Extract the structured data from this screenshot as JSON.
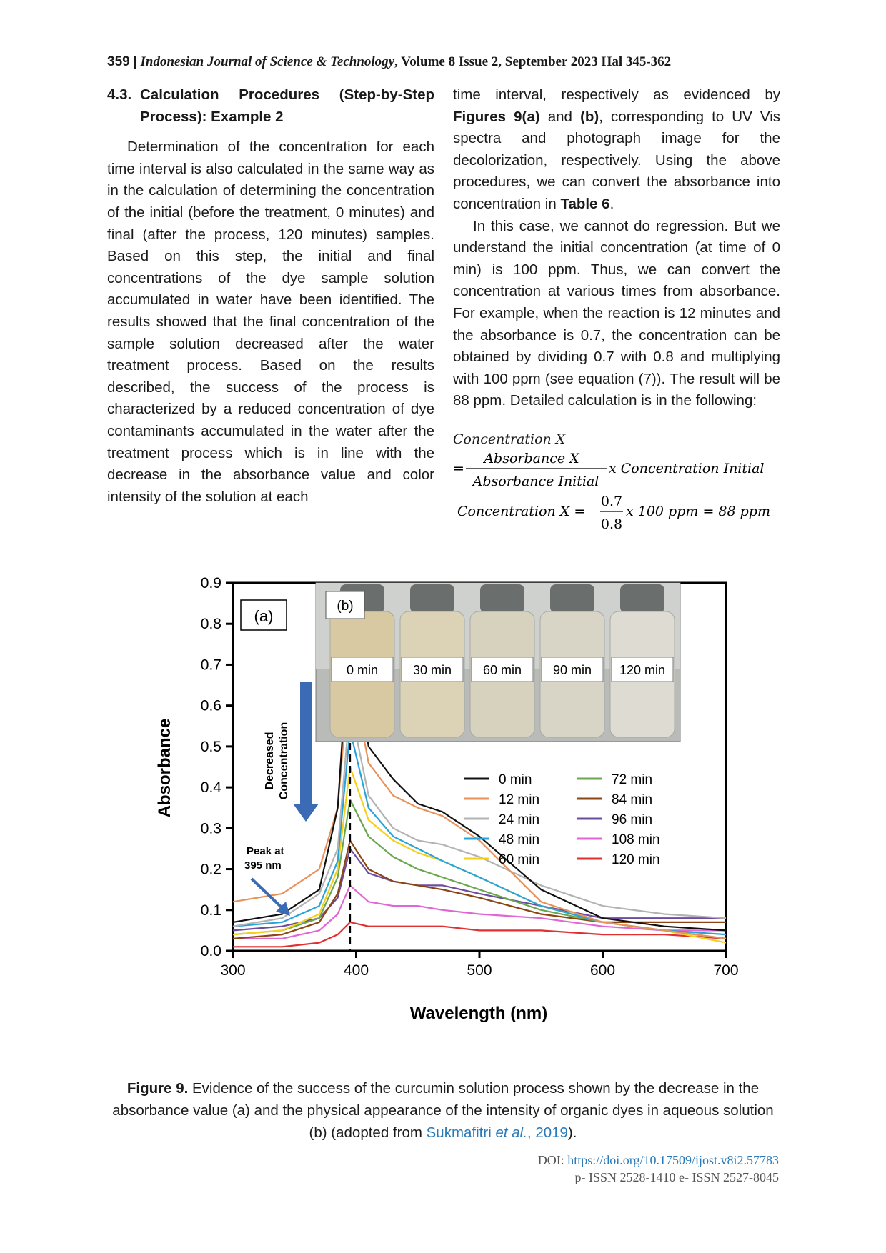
{
  "header": {
    "page_number": "359",
    "separator": "|",
    "journal": "Indonesian Journal of Science & Technology",
    "issue": ", Volume 8 Issue 2, September 2023 Hal 345-362"
  },
  "section": {
    "number": "4.3.",
    "title": "Calculation Procedures (Step-by-Step Process): Example 2"
  },
  "left_paragraph": "Determination of the concentration for each time interval is also calculated in the same way as in the calculation of determining the concentration of the initial (before the treatment, 0 minutes) and final (after the process, 120 minutes) samples. Based on this step, the initial and final concentrations of the dye sample solution accumulated in water have been identified. The results showed that the final concentration of the sample solution decreased after the water treatment process. Based on the results described, the success of the process is characterized by a reduced concentration of dye contaminants accumulated in the water after the treatment process which is in line with the decrease in the absorbance value and color intensity of the solution at each",
  "right_p1": {
    "a": "time interval, respectively as evidenced by ",
    "fig_a": "Figures 9(a)",
    "and": " and ",
    "fig_b": "(b)",
    "b": ", corresponding to UV Vis spectra and photograph image for the decolorization, respectively. Using the above procedures, we can convert the absorbance into concentration in ",
    "table": "Table 6",
    "end": "."
  },
  "right_p2": "In this case, we cannot do regression. But we understand the initial concentration (at time of 0 min) is 100 ppm. Thus, we can convert the concentration at various times from absorbance. For example, when the reaction is 12 minutes and the absorbance is 0.7, the concentration can be obtained by dividing 0.7 with 0.8 and multiplying with 100 ppm (see equation (7)). The result will be 88 ppm. Detailed calculation is in the following:",
  "equation": {
    "line1": "Concentration X",
    "equals": "=",
    "numerator": "Absorbance X",
    "denominator": "Absorbance Initial",
    "rhs": "x Concentration Initial",
    "line3_lhs": "Concentration X =",
    "num2": "0.7",
    "den2": "0.8",
    "rhs2": "x 100 ppm = 88 ppm"
  },
  "figure": {
    "panel_a_label": "(a)",
    "panel_b_label": "(b)",
    "arrow_label_line1": "Decreased",
    "arrow_label_line2": "Concentration",
    "peak_label_line1": "Peak at",
    "peak_label_line2": "395 nm",
    "photo_labels": [
      "0 min",
      "30 min",
      "60 min",
      "90 min",
      "120 min"
    ]
  },
  "chart_data": {
    "type": "line",
    "title": "",
    "xlabel": "Wavelength (nm)",
    "ylabel": "Absorbance",
    "xlim": [
      300,
      700
    ],
    "ylim": [
      0,
      0.9
    ],
    "x_ticks": [
      300,
      400,
      500,
      600,
      700
    ],
    "y_ticks": [
      0.0,
      0.1,
      0.2,
      0.3,
      0.4,
      0.5,
      0.6,
      0.7,
      0.8,
      0.9
    ],
    "legend_position": "right",
    "peak_wavelength": 395,
    "x": [
      300,
      340,
      370,
      385,
      395,
      410,
      430,
      450,
      470,
      500,
      550,
      600,
      650,
      700
    ],
    "series": [
      {
        "name": "0 min",
        "color": "#111111",
        "values": [
          0.07,
          0.09,
          0.15,
          0.35,
          0.8,
          0.5,
          0.42,
          0.36,
          0.34,
          0.28,
          0.15,
          0.08,
          0.06,
          0.05
        ]
      },
      {
        "name": "12 min",
        "color": "#e8925a",
        "values": [
          0.12,
          0.14,
          0.2,
          0.35,
          0.7,
          0.46,
          0.38,
          0.35,
          0.33,
          0.27,
          0.12,
          0.07,
          0.05,
          0.03
        ]
      },
      {
        "name": "24 min",
        "color": "#b3b3b3",
        "values": [
          0.06,
          0.08,
          0.14,
          0.25,
          0.6,
          0.38,
          0.3,
          0.27,
          0.26,
          0.23,
          0.16,
          0.11,
          0.09,
          0.08
        ]
      },
      {
        "name": "48 min",
        "color": "#2aa3d8",
        "values": [
          0.06,
          0.07,
          0.11,
          0.22,
          0.54,
          0.35,
          0.28,
          0.25,
          0.22,
          0.18,
          0.11,
          0.07,
          0.05,
          0.04
        ]
      },
      {
        "name": "60 min",
        "color": "#f5cf1b",
        "values": [
          0.04,
          0.05,
          0.09,
          0.2,
          0.45,
          0.32,
          0.27,
          0.24,
          0.22,
          0.18,
          0.11,
          0.07,
          0.05,
          0.02
        ]
      },
      {
        "name": "72 min",
        "color": "#6aa84f",
        "values": [
          0.04,
          0.05,
          0.08,
          0.18,
          0.37,
          0.28,
          0.23,
          0.2,
          0.18,
          0.15,
          0.1,
          0.07,
          0.05,
          0.03
        ]
      },
      {
        "name": "84 min",
        "color": "#8b4513",
        "values": [
          0.03,
          0.04,
          0.07,
          0.14,
          0.27,
          0.2,
          0.17,
          0.16,
          0.15,
          0.13,
          0.09,
          0.07,
          0.07,
          0.07
        ]
      },
      {
        "name": "96 min",
        "color": "#6d4c9f",
        "values": [
          0.05,
          0.06,
          0.08,
          0.13,
          0.25,
          0.19,
          0.17,
          0.16,
          0.16,
          0.14,
          0.11,
          0.08,
          0.08,
          0.08
        ]
      },
      {
        "name": "108 min",
        "color": "#e066d6",
        "values": [
          0.03,
          0.03,
          0.05,
          0.09,
          0.16,
          0.12,
          0.11,
          0.11,
          0.1,
          0.09,
          0.08,
          0.06,
          0.05,
          0.05
        ]
      },
      {
        "name": "120 min",
        "color": "#e03030",
        "values": [
          0.01,
          0.01,
          0.02,
          0.04,
          0.07,
          0.06,
          0.06,
          0.06,
          0.06,
          0.05,
          0.05,
          0.04,
          0.04,
          0.03
        ]
      }
    ]
  },
  "caption": {
    "label": "Figure 9.",
    "text": " Evidence of the success of the curcumin solution process shown by the decrease in the absorbance value (a) and the physical appearance of the intensity of organic dyes in aqueous solution (b) (adopted from ",
    "cite_author": "Sukmafitri",
    "cite_etal": " et al.",
    "cite_sep": ", ",
    "cite_year": "2019",
    "end": ")."
  },
  "footer": {
    "doi_label": "DOI: ",
    "doi_url": "https://doi.org/10.17509/ijost.v8i2.57783",
    "issn": "p- ISSN 2528-1410 e- ISSN 2527-8045"
  }
}
